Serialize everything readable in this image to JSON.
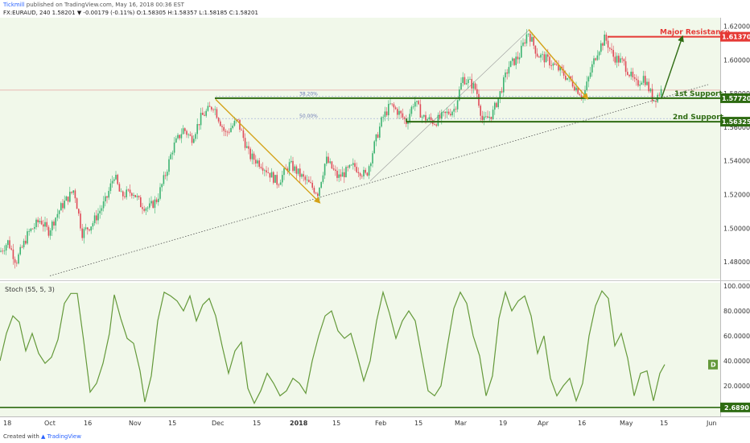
{
  "header": {
    "author": "Tickmill",
    "published": "published on TradingView.com, May 16, 2018 00:36 EST",
    "symbol_line": "FX:EURAUD, 240  1.58201 ▼ -0.00179 (-0.11%) O:1.58305 H:1.58357 L:1.58185 C:1.58201"
  },
  "footer": {
    "created_with": "Created with",
    "brand": "TradingView"
  },
  "colors": {
    "bg": "#ffffff",
    "plot_bg": "#f1f8ea",
    "up": "#3cb371",
    "down": "#e04a58",
    "support": "#2e6b12",
    "resistance": "#e53935",
    "arrow": "#d4a218",
    "stoch": "#64993a",
    "trend": "#555555"
  },
  "chart_data": [
    {
      "type": "candlestick",
      "symbol": "FX:EURAUD",
      "interval": "240",
      "ylim": [
        1.47,
        1.625
      ],
      "y_ticks": [
        "1.62000",
        "1.60000",
        "1.58000",
        "1.56000",
        "1.54000",
        "1.52000",
        "1.50000",
        "1.48000"
      ],
      "y_tick_values": [
        1.62,
        1.6,
        1.58,
        1.56,
        1.54,
        1.52,
        1.5,
        1.48
      ],
      "x_ticks": [
        "18",
        "Oct",
        "16",
        "Nov",
        "15",
        "Dec",
        "15",
        "2018",
        "15",
        "Feb",
        "15",
        "Mar",
        "19",
        "Apr",
        "16",
        "May",
        "15",
        "Jun"
      ],
      "path": [
        [
          0,
          1.486
        ],
        [
          10,
          1.492
        ],
        [
          20,
          1.48
        ],
        [
          35,
          1.497
        ],
        [
          50,
          1.505
        ],
        [
          60,
          1.498
        ],
        [
          75,
          1.512
        ],
        [
          92,
          1.523
        ],
        [
          102,
          1.497
        ],
        [
          115,
          1.503
        ],
        [
          132,
          1.517
        ],
        [
          142,
          1.532
        ],
        [
          150,
          1.519
        ],
        [
          165,
          1.522
        ],
        [
          175,
          1.514
        ],
        [
          185,
          1.512
        ],
        [
          195,
          1.517
        ],
        [
          205,
          1.531
        ],
        [
          215,
          1.548
        ],
        [
          228,
          1.559
        ],
        [
          238,
          1.553
        ],
        [
          250,
          1.566
        ],
        [
          265,
          1.573
        ],
        [
          280,
          1.556
        ],
        [
          295,
          1.564
        ],
        [
          310,
          1.543
        ],
        [
          325,
          1.538
        ],
        [
          345,
          1.527
        ],
        [
          360,
          1.538
        ],
        [
          380,
          1.528
        ],
        [
          395,
          1.521
        ],
        [
          405,
          1.541
        ],
        [
          420,
          1.53
        ],
        [
          440,
          1.537
        ],
        [
          455,
          1.531
        ],
        [
          465,
          1.549
        ],
        [
          475,
          1.565
        ],
        [
          485,
          1.573
        ],
        [
          495,
          1.569
        ],
        [
          505,
          1.563
        ],
        [
          515,
          1.576
        ],
        [
          525,
          1.566
        ],
        [
          540,
          1.563
        ],
        [
          555,
          1.568
        ],
        [
          565,
          1.571
        ],
        [
          575,
          1.589
        ],
        [
          585,
          1.586
        ],
        [
          592,
          1.582
        ],
        [
          600,
          1.563
        ],
        [
          612,
          1.568
        ],
        [
          622,
          1.581
        ],
        [
          632,
          1.596
        ],
        [
          645,
          1.602
        ],
        [
          656,
          1.617
        ],
        [
          668,
          1.603
        ],
        [
          680,
          1.6
        ],
        [
          695,
          1.594
        ],
        [
          710,
          1.587
        ],
        [
          725,
          1.578
        ],
        [
          735,
          1.595
        ],
        [
          742,
          1.605
        ],
        [
          752,
          1.613
        ],
        [
          762,
          1.602
        ],
        [
          775,
          1.598
        ],
        [
          790,
          1.585
        ],
        [
          800,
          1.59
        ],
        [
          812,
          1.576
        ],
        [
          822,
          1.582
        ]
      ],
      "series": [
        {
          "name": "Major Resistance",
          "value": 1.6137,
          "label": "1.61370",
          "x_start": 755,
          "x_end": 895
        },
        {
          "name": "1st Support",
          "value": 1.5772,
          "label": "1.57720",
          "x_start": 268,
          "x_end": 895
        },
        {
          "name": "2nd Support",
          "value": 1.56325,
          "label": "1.56325",
          "x_start": 505,
          "x_end": 895
        }
      ],
      "fib_levels": [
        {
          "name": "38.20%",
          "value": 1.5784
        },
        {
          "name": "50.00%",
          "value": 1.5651
        }
      ],
      "annotations": {
        "resistance": "Major Resistance",
        "support1": "1st Support",
        "support2": "2nd Support"
      },
      "last_price": "1.58201",
      "last_price_value": 1.582,
      "trend_line": [
        [
          62,
          1.4717
        ],
        [
          880,
          1.5853
        ]
      ],
      "arrows": [
        {
          "from": [
            268,
            1.5765
          ],
          "to": [
            397,
            1.5153
          ]
        },
        {
          "from": [
            657,
            1.618
          ],
          "to": [
            730,
            1.577
          ]
        },
        {
          "from": [
            822,
            1.5772
          ],
          "to": [
            848,
            1.6137
          ]
        }
      ]
    },
    {
      "type": "line",
      "title": "Stoch (55, 5, 3)",
      "ylim": [
        0,
        100
      ],
      "y_ticks": [
        "100.0000",
        "80.0000",
        "60.0000",
        "40.0000",
        "20.0000"
      ],
      "y_tick_values": [
        100,
        80,
        60,
        40,
        20
      ],
      "level_label": "2.6890",
      "level_value": 2.689,
      "d_badge": "D",
      "d_value": 37,
      "series": [
        {
          "name": "%D",
          "points": [
            [
              0,
              40
            ],
            [
              8,
              62
            ],
            [
              16,
              76
            ],
            [
              24,
              71
            ],
            [
              32,
              48
            ],
            [
              40,
              62
            ],
            [
              48,
              46
            ],
            [
              56,
              38
            ],
            [
              64,
              43
            ],
            [
              72,
              57
            ],
            [
              80,
              86
            ],
            [
              88,
              94
            ],
            [
              96,
              94
            ],
            [
              104,
              56
            ],
            [
              112,
              15
            ],
            [
              120,
              22
            ],
            [
              128,
              38
            ],
            [
              136,
              62
            ],
            [
              142,
              93
            ],
            [
              150,
              74
            ],
            [
              158,
              58
            ],
            [
              166,
              54
            ],
            [
              174,
              32
            ],
            [
              180,
              7
            ],
            [
              188,
              28
            ],
            [
              196,
              72
            ],
            [
              204,
              95
            ],
            [
              212,
              92
            ],
            [
              220,
              88
            ],
            [
              228,
              80
            ],
            [
              236,
              92
            ],
            [
              244,
              72
            ],
            [
              252,
              85
            ],
            [
              260,
              90
            ],
            [
              268,
              76
            ],
            [
              276,
              52
            ],
            [
              284,
              30
            ],
            [
              292,
              48
            ],
            [
              300,
              55
            ],
            [
              308,
              18
            ],
            [
              316,
              6
            ],
            [
              324,
              16
            ],
            [
              332,
              30
            ],
            [
              340,
              22
            ],
            [
              348,
              12
            ],
            [
              356,
              16
            ],
            [
              364,
              26
            ],
            [
              372,
              22
            ],
            [
              380,
              14
            ],
            [
              388,
              40
            ],
            [
              396,
              60
            ],
            [
              404,
              76
            ],
            [
              412,
              80
            ],
            [
              420,
              64
            ],
            [
              428,
              58
            ],
            [
              436,
              62
            ],
            [
              444,
              44
            ],
            [
              452,
              24
            ],
            [
              460,
              40
            ],
            [
              468,
              72
            ],
            [
              476,
              95
            ],
            [
              484,
              78
            ],
            [
              492,
              58
            ],
            [
              500,
              72
            ],
            [
              508,
              80
            ],
            [
              516,
              72
            ],
            [
              524,
              44
            ],
            [
              532,
              16
            ],
            [
              540,
              12
            ],
            [
              548,
              20
            ],
            [
              556,
              52
            ],
            [
              564,
              82
            ],
            [
              572,
              95
            ],
            [
              580,
              86
            ],
            [
              588,
              60
            ],
            [
              596,
              44
            ],
            [
              604,
              12
            ],
            [
              612,
              28
            ],
            [
              620,
              74
            ],
            [
              628,
              95
            ],
            [
              636,
              80
            ],
            [
              644,
              88
            ],
            [
              652,
              92
            ],
            [
              660,
              76
            ],
            [
              668,
              46
            ],
            [
              676,
              60
            ],
            [
              684,
              26
            ],
            [
              692,
              12
            ],
            [
              700,
              20
            ],
            [
              708,
              26
            ],
            [
              716,
              8
            ],
            [
              724,
              22
            ],
            [
              732,
              60
            ],
            [
              740,
              84
            ],
            [
              748,
              96
            ],
            [
              756,
              90
            ],
            [
              764,
              52
            ],
            [
              772,
              62
            ],
            [
              780,
              42
            ],
            [
              788,
              12
            ],
            [
              796,
              30
            ],
            [
              804,
              32
            ],
            [
              812,
              8
            ],
            [
              820,
              30
            ],
            [
              826,
              37
            ]
          ]
        }
      ]
    }
  ]
}
